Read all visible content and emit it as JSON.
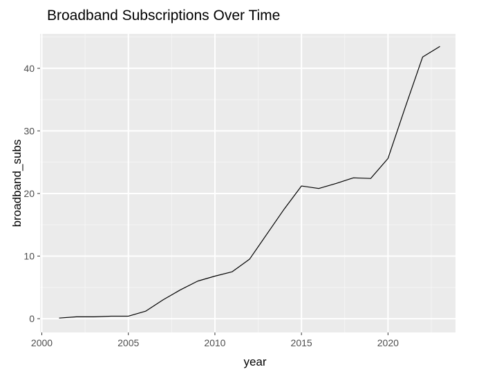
{
  "chart_data": {
    "type": "line",
    "title": "Broadband Subscriptions Over Time",
    "xlabel": "year",
    "ylabel": "broadband_subs",
    "xlim": [
      1999.9,
      2023.9
    ],
    "ylim": [
      -2.2,
      45.5
    ],
    "x_ticks": [
      2000,
      2005,
      2010,
      2015,
      2020
    ],
    "x_tick_labels": [
      "2000",
      "2005",
      "2010",
      "2015",
      "2020"
    ],
    "y_ticks": [
      0,
      10,
      20,
      30,
      40
    ],
    "y_tick_labels": [
      "0",
      "10",
      "20",
      "30",
      "40"
    ],
    "grid": true,
    "legend": "none",
    "series": [
      {
        "x": [
          2001,
          2002,
          2003,
          2004,
          2005,
          2006,
          2007,
          2008,
          2009,
          2010,
          2011,
          2012,
          2013,
          2014,
          2015,
          2016,
          2017,
          2018,
          2019,
          2020,
          2021,
          2022,
          2023
        ],
        "values": [
          0.1,
          0.3,
          0.3,
          0.4,
          0.4,
          1.2,
          3.0,
          4.6,
          6.0,
          6.8,
          7.5,
          9.5,
          13.5,
          17.5,
          21.2,
          20.8,
          21.6,
          22.5,
          22.4,
          25.6,
          33.8,
          41.8,
          43.5
        ]
      }
    ],
    "colors": {
      "panel_background": "#ebebeb",
      "grid_major": "#ffffff",
      "grid_minor": "#f5f5f5",
      "line": "#000000",
      "tick_label": "#4d4d4d",
      "tick_mark": "#333333"
    }
  }
}
